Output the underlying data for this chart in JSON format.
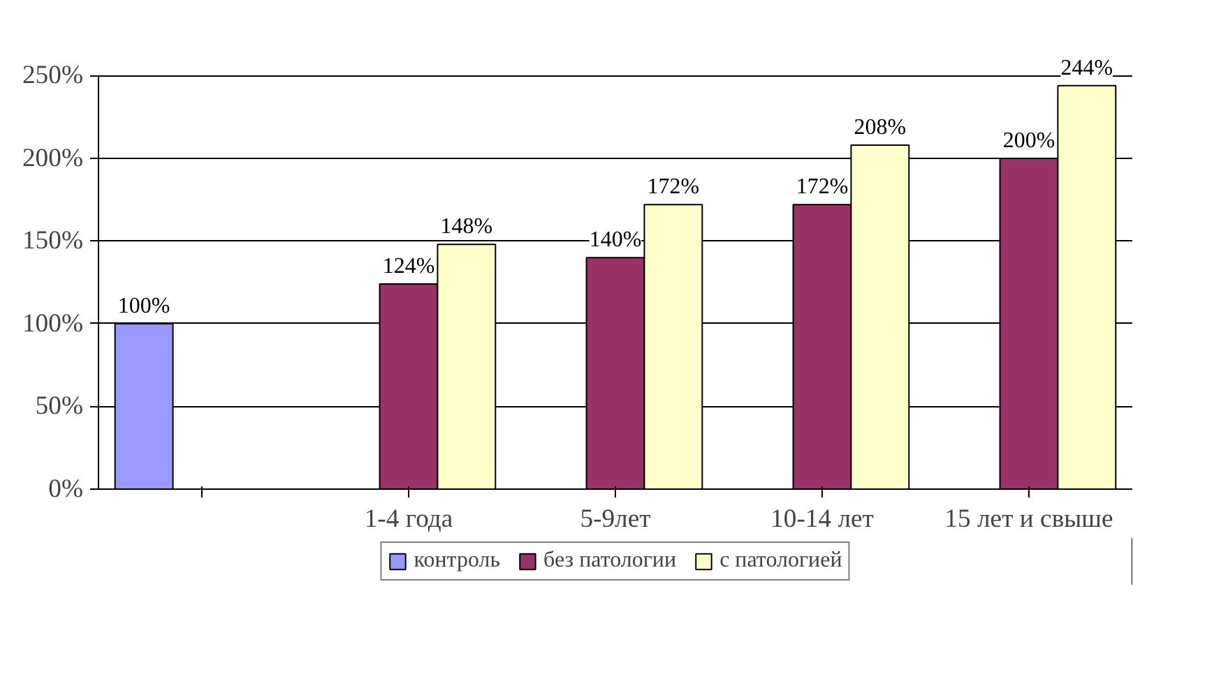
{
  "chart_data": {
    "type": "bar",
    "categories": [
      null,
      "1-4 года",
      "5-9лет",
      "10-14 лет",
      "15 лет и свыше"
    ],
    "series": [
      {
        "name": "контроль",
        "color": "#9999ff",
        "values": [
          100,
          null,
          null,
          null,
          null
        ],
        "value_labels": [
          "100%",
          null,
          null,
          null,
          null
        ]
      },
      {
        "name": "без патологии",
        "color": "#993366",
        "values": [
          null,
          124,
          140,
          172,
          200
        ],
        "value_labels": [
          null,
          "124%",
          "140%",
          "172%",
          "200%"
        ]
      },
      {
        "name": "с патологией",
        "color": "#ffffcc",
        "values": [
          null,
          148,
          172,
          208,
          244
        ],
        "value_labels": [
          null,
          "148%",
          "172%",
          "208%",
          "244%"
        ]
      }
    ],
    "ylim": [
      0,
      250
    ],
    "yticks": [
      {
        "value": 0,
        "label": "0%"
      },
      {
        "value": 50,
        "label": "50%"
      },
      {
        "value": 100,
        "label": "100%"
      },
      {
        "value": 150,
        "label": "150%"
      },
      {
        "value": 200,
        "label": "200%"
      },
      {
        "value": 250,
        "label": "250%"
      }
    ],
    "grid": "y",
    "legend": "bottom"
  }
}
